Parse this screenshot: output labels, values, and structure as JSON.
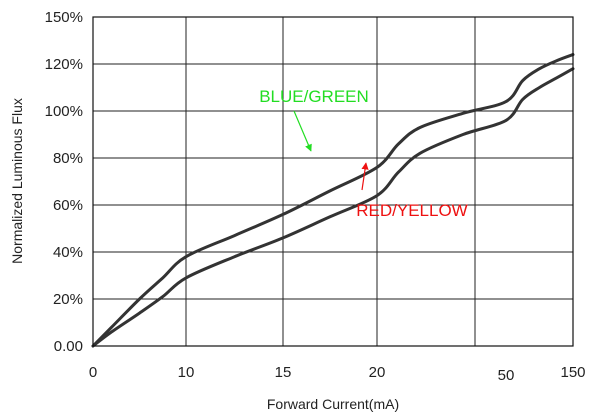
{
  "chart_data": {
    "type": "line",
    "title": "",
    "xlabel": "Forward Current(mA)",
    "ylabel": "Normalized Luminous Flux",
    "x_tick_labels": [
      "0",
      "10",
      "15",
      "20",
      "50",
      "150"
    ],
    "y_tick_labels": [
      "0.00",
      "20%",
      "40%",
      "60%",
      "80%",
      "100%",
      "120%",
      "150%"
    ],
    "ylim": [
      0,
      150
    ],
    "grid": true,
    "legend": "none",
    "series": [
      {
        "name": "BLUE/GREEN",
        "color": "#333333",
        "x": [
          0,
          2,
          5,
          7.5,
          10,
          12.5,
          15,
          17.5,
          20,
          25,
          30,
          40,
          50,
          75,
          100,
          125,
          150
        ],
        "y": [
          0,
          8,
          20,
          29,
          38,
          47,
          56,
          66,
          76,
          86,
          93,
          99,
          104,
          113,
          118,
          122,
          126
        ]
      },
      {
        "name": "RED/YELLOW",
        "color": "#333333",
        "x": [
          0,
          2,
          5,
          7.5,
          10,
          12.5,
          15,
          17.5,
          20,
          25,
          30,
          40,
          50,
          75,
          100,
          125,
          150
        ],
        "y": [
          0,
          6,
          14,
          21,
          29,
          38,
          46,
          55,
          64,
          74,
          82,
          90,
          96,
          105,
          110,
          114,
          118
        ]
      }
    ],
    "annotations": [
      {
        "text": "BLUE/GREEN",
        "color": "#22dd22",
        "points_to": "BLUE/GREEN"
      },
      {
        "text": "RED/YELLOW",
        "color": "#ee1111",
        "points_to": "RED/YELLOW"
      }
    ]
  }
}
